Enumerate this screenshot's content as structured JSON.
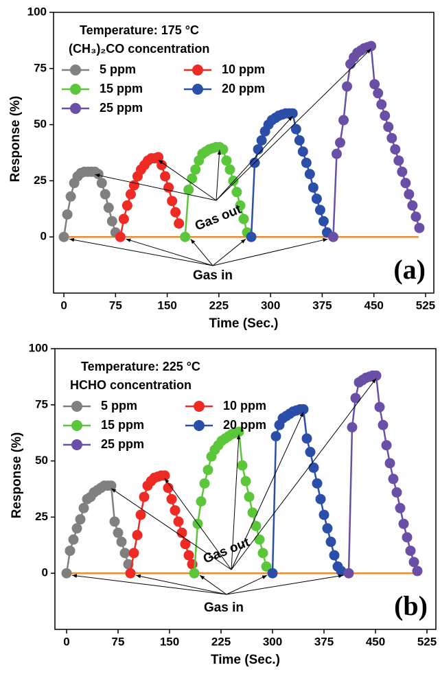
{
  "chart_data": [
    {
      "type": "line",
      "panel_label": "(a)",
      "annotations": [
        "Temperature: 175 °C",
        "(CH₃)₂CO concentration",
        "Gas out",
        "Gas in"
      ],
      "xlabel": "Time (Sec.)",
      "ylabel": "Response (%)",
      "xlim": [
        -15,
        537
      ],
      "ylim": [
        -25,
        100
      ],
      "xticks": [
        0,
        75,
        150,
        225,
        300,
        375,
        450,
        525
      ],
      "yticks": [
        0,
        25,
        50,
        75,
        100
      ],
      "series": [
        {
          "name": "5 ppm",
          "color": "#808080",
          "x": [
            0,
            5,
            10,
            15,
            20,
            25,
            30,
            35,
            40,
            45,
            50,
            55,
            60,
            65,
            70,
            75
          ],
          "values": [
            0,
            10,
            18,
            24,
            27,
            28.5,
            29,
            29,
            29,
            29,
            28,
            24,
            19,
            13,
            7,
            2
          ]
        },
        {
          "name": "10 ppm",
          "color": "#ee2a24",
          "x": [
            82,
            87,
            92,
            97,
            102,
            107,
            112,
            117,
            122,
            127,
            132,
            137,
            142,
            147,
            152,
            157,
            162,
            167
          ],
          "values": [
            0,
            8,
            14,
            19,
            23,
            27,
            30,
            32,
            34,
            35,
            35,
            35.5,
            32,
            27,
            22,
            16,
            11,
            6
          ]
        },
        {
          "name": "15 ppm",
          "color": "#5cc63a",
          "x": [
            176,
            181,
            186,
            191,
            196,
            201,
            206,
            211,
            216,
            221,
            226,
            231,
            236,
            241,
            246,
            251,
            256,
            261,
            266
          ],
          "values": [
            0,
            21,
            26,
            30,
            34,
            37,
            38,
            39,
            39.5,
            40,
            40,
            39,
            34,
            30,
            25,
            20,
            14,
            8,
            2
          ]
        },
        {
          "name": "20 ppm",
          "color": "#2b4fa8",
          "x": [
            272,
            277,
            282,
            287,
            292,
            297,
            302,
            307,
            312,
            317,
            322,
            327,
            332,
            337,
            342,
            347,
            352,
            357,
            362,
            367,
            372,
            377,
            382
          ],
          "values": [
            0,
            33,
            39,
            43,
            47,
            50,
            52,
            53,
            54,
            54.5,
            55,
            55,
            55,
            48,
            43,
            38,
            33,
            28,
            22,
            17,
            12,
            7,
            2
          ]
        },
        {
          "name": "25 ppm",
          "color": "#6a4fa6",
          "x": [
            391,
            396,
            401,
            406,
            411,
            416,
            421,
            426,
            431,
            436,
            441,
            446,
            451,
            456,
            461,
            466,
            471,
            476,
            481,
            486,
            491,
            496,
            501,
            506,
            511,
            516
          ],
          "values": [
            0,
            37,
            42,
            52,
            67,
            77,
            80,
            82,
            83,
            84,
            84.5,
            85,
            68,
            64,
            59,
            54,
            49,
            44,
            39,
            34,
            29,
            24,
            19,
            14,
            9,
            4
          ]
        }
      ],
      "baseline": {
        "color": "#f08a30",
        "x": [
          0,
          515
        ],
        "values": [
          0,
          0
        ]
      }
    },
    {
      "type": "line",
      "panel_label": "(b)",
      "annotations": [
        "Temperature: 225 °C",
        "HCHO concentration",
        "Gas out",
        "Gas in"
      ],
      "xlabel": "Time (Sec.)",
      "ylabel": "Response (%)",
      "xlim": [
        -17,
        538
      ],
      "ylim": [
        -25,
        100
      ],
      "xticks": [
        0,
        75,
        150,
        225,
        300,
        375,
        450,
        525
      ],
      "yticks": [
        0,
        25,
        50,
        75,
        100
      ],
      "series": [
        {
          "name": "5 ppm",
          "color": "#808080",
          "x": [
            0,
            5,
            10,
            15,
            20,
            25,
            30,
            35,
            40,
            45,
            50,
            55,
            60,
            65,
            70,
            75,
            80,
            85,
            90
          ],
          "values": [
            0,
            10,
            15,
            20,
            24,
            29,
            33,
            34,
            36,
            37,
            38,
            39,
            39,
            39,
            23,
            18,
            14,
            9,
            4
          ]
        },
        {
          "name": "10 ppm",
          "color": "#ee2a24",
          "x": [
            93,
            98,
            103,
            108,
            113,
            118,
            123,
            128,
            133,
            138,
            143,
            148,
            153,
            158,
            163,
            168,
            173,
            178,
            183
          ],
          "values": [
            0,
            9,
            17,
            26,
            34,
            39,
            41,
            42.5,
            43,
            43.5,
            43.5,
            38,
            33,
            28,
            23,
            18,
            13,
            8,
            4
          ]
        },
        {
          "name": "15 ppm",
          "color": "#5cc63a",
          "x": [
            186,
            191,
            196,
            201,
            206,
            211,
            216,
            221,
            226,
            231,
            236,
            241,
            246,
            251,
            256,
            261,
            266,
            271,
            276,
            281,
            286,
            291
          ],
          "values": [
            0,
            22,
            32,
            40,
            46,
            52,
            55,
            57,
            59,
            60,
            61,
            62,
            62.5,
            63,
            48,
            41,
            34,
            27,
            21,
            15,
            9,
            3
          ]
        },
        {
          "name": "20 ppm",
          "color": "#2b4fa8",
          "x": [
            300,
            305,
            310,
            315,
            320,
            325,
            330,
            335,
            340,
            345,
            350,
            355,
            360,
            365,
            370,
            375,
            380,
            385,
            390,
            395,
            400
          ],
          "values": [
            0,
            61,
            66,
            69,
            70,
            71,
            72,
            72.5,
            73,
            73,
            60,
            54,
            47,
            40,
            33,
            26,
            20,
            14,
            8,
            3,
            1
          ]
        },
        {
          "name": "25 ppm",
          "color": "#6a4fa6",
          "x": [
            411,
            416,
            421,
            426,
            431,
            436,
            441,
            446,
            451,
            456,
            461,
            466,
            471,
            476,
            481,
            486,
            491,
            496,
            501,
            506,
            511
          ],
          "values": [
            0,
            65,
            78,
            85,
            86,
            87,
            87.5,
            88,
            88,
            74,
            66,
            57,
            49,
            42,
            36,
            29,
            22,
            16,
            10,
            5,
            1
          ]
        }
      ],
      "baseline": {
        "color": "#f08a30",
        "x": [
          0,
          510
        ],
        "values": [
          0,
          0
        ]
      }
    }
  ]
}
